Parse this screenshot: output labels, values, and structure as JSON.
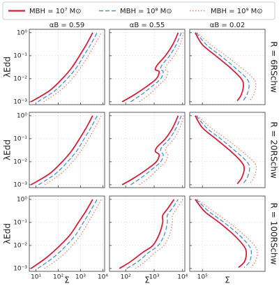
{
  "chart_data": {
    "type": "line",
    "log_x": true,
    "log_y": true,
    "grid": true,
    "xlabel": "Σ",
    "ylabel": "λEdd",
    "ylim": [
      0.00075,
      1.4
    ],
    "yticks": [
      {
        "value": 0.001,
        "label": "10⁻³"
      },
      {
        "value": 0.01,
        "label": "10⁻²"
      },
      {
        "value": 0.1,
        "label": "10⁻¹"
      },
      {
        "value": 1,
        "label": "10⁰"
      }
    ],
    "series": [
      {
        "name": "MBH = 10⁷ M⊙",
        "color": "#d41f3c",
        "dash": "solid"
      },
      {
        "name": "MBH = 10⁸ M⊙",
        "color": "#4a8fd8",
        "dash": "dashed"
      },
      {
        "name": "MBH = 10⁹ M⊙",
        "color": "#f0806a",
        "dash": "dotted"
      }
    ],
    "columns": [
      {
        "title": "αB = 0.59",
        "xlim": [
          5,
          12000
        ],
        "xticks": [
          {
            "value": 10,
            "label": "10¹"
          },
          {
            "value": 100,
            "label": "10²"
          },
          {
            "value": 1000,
            "label": "10³"
          },
          {
            "value": 10000,
            "label": "10⁴"
          }
        ]
      },
      {
        "title": "αB = 0.55",
        "xlim": [
          27,
          12000
        ],
        "xticks": [
          {
            "value": 100,
            "label": "10²"
          },
          {
            "value": 1000,
            "label": "10³"
          },
          {
            "value": 10000,
            "label": "10⁴"
          }
        ]
      },
      {
        "title": "αB = 0.02",
        "xlim": [
          35000,
          18000000
        ],
        "xticks": [
          {
            "value": 100000,
            "label": "10⁵"
          }
        ]
      }
    ],
    "rows": [
      {
        "label": "R = 6RSchw",
        "panels": [
          {
            "lines": [
              {
                "x": [
                  6,
                  40,
                  150,
                  400,
                  900,
                  1800,
                  3500
                ],
                "y": [
                  0.001,
                  0.003,
                  0.01,
                  0.03,
                  0.1,
                  0.3,
                  1
                ]
              },
              {
                "x": [
                  12,
                  70,
                  250,
                  650,
                  1400,
                  2800,
                  5500
                ],
                "y": [
                  0.001,
                  0.003,
                  0.01,
                  0.03,
                  0.1,
                  0.3,
                  1
                ]
              },
              {
                "x": [
                  22,
                  120,
                  420,
                  1000,
                  2200,
                  4300,
                  8500
                ],
                "y": [
                  0.001,
                  0.003,
                  0.01,
                  0.03,
                  0.1,
                  0.3,
                  1
                ]
              }
            ]
          },
          {
            "lines": [
              {
                "x": [
                  75,
                  200,
                  600,
                  1200,
                  1500,
                  1100,
                  1300,
                  2500,
                  4500,
                  7000
                ],
                "y": [
                  0.001,
                  0.002,
                  0.005,
                  0.01,
                  0.02,
                  0.025,
                  0.04,
                  0.1,
                  0.3,
                  1
                ]
              },
              {
                "x": [
                  150,
                  350,
                  900,
                  1700,
                  2100,
                  1700,
                  1900,
                  3500,
                  6000,
                  9000
                ],
                "y": [
                  0.001,
                  0.002,
                  0.005,
                  0.01,
                  0.02,
                  0.025,
                  0.04,
                  0.1,
                  0.3,
                  1
                ]
              },
              {
                "x": [
                  300,
                  650,
                  1400,
                  2500,
                  3000,
                  2500,
                  2800,
                  5000,
                  8000,
                  11000
                ],
                "y": [
                  0.001,
                  0.002,
                  0.005,
                  0.01,
                  0.02,
                  0.025,
                  0.04,
                  0.1,
                  0.3,
                  1
                ]
              }
            ]
          },
          {
            "lines": [
              {
                "x": [
                  55000,
                  100000,
                  300000,
                  1000000,
                  2500000,
                  3000000,
                  2500000,
                  1800000
                ],
                "y": [
                  1,
                  0.3,
                  0.1,
                  0.03,
                  0.01,
                  0.005,
                  0.002,
                  0.0011
                ]
              },
              {
                "x": [
                  60000,
                  140000,
                  450000,
                  1500000,
                  4000000,
                  4800000,
                  4000000,
                  2900000
                ],
                "y": [
                  1,
                  0.3,
                  0.1,
                  0.03,
                  0.01,
                  0.005,
                  0.002,
                  0.0011
                ]
              },
              {
                "x": [
                  65000,
                  200000,
                  700000,
                  2500000,
                  7000000,
                  8400000,
                  7000000,
                  5000000
                ],
                "y": [
                  1,
                  0.3,
                  0.1,
                  0.03,
                  0.01,
                  0.005,
                  0.002,
                  0.0011
                ]
              }
            ]
          }
        ]
      },
      {
        "label": "R = 20RSchw",
        "panels": [
          {
            "lines": [
              {
                "x": [
                  6,
                  40,
                  150,
                  400,
                  900,
                  1800,
                  3500
                ],
                "y": [
                  0.001,
                  0.003,
                  0.01,
                  0.03,
                  0.1,
                  0.3,
                  1
                ]
              },
              {
                "x": [
                  13,
                  75,
                  260,
                  680,
                  1450,
                  2900,
                  5600
                ],
                "y": [
                  0.001,
                  0.003,
                  0.01,
                  0.03,
                  0.1,
                  0.3,
                  1
                ]
              },
              {
                "x": [
                  25,
                  130,
                  440,
                  1050,
                  2300,
                  4400,
                  8500
                ],
                "y": [
                  0.001,
                  0.003,
                  0.01,
                  0.03,
                  0.1,
                  0.3,
                  1
                ]
              }
            ]
          },
          {
            "lines": [
              {
                "x": [
                  75,
                  200,
                  600,
                  1200,
                  1500,
                  1100,
                  1300,
                  2500,
                  4500,
                  7000
                ],
                "y": [
                  0.001,
                  0.002,
                  0.005,
                  0.01,
                  0.02,
                  0.028,
                  0.045,
                  0.1,
                  0.3,
                  1
                ]
              },
              {
                "x": [
                  150,
                  350,
                  900,
                  1700,
                  2100,
                  1700,
                  1900,
                  3500,
                  6000,
                  9000
                ],
                "y": [
                  0.001,
                  0.002,
                  0.005,
                  0.01,
                  0.02,
                  0.028,
                  0.045,
                  0.1,
                  0.3,
                  1
                ]
              },
              {
                "x": [
                  300,
                  650,
                  1400,
                  2500,
                  3000,
                  2500,
                  2800,
                  5000,
                  8000,
                  11000
                ],
                "y": [
                  0.001,
                  0.002,
                  0.005,
                  0.01,
                  0.02,
                  0.028,
                  0.045,
                  0.1,
                  0.3,
                  1
                ]
              }
            ]
          },
          {
            "lines": [
              {
                "x": [
                  55000,
                  100000,
                  300000,
                  1000000,
                  2500000,
                  3200000,
                  2600000,
                  1800000
                ],
                "y": [
                  1,
                  0.3,
                  0.1,
                  0.03,
                  0.01,
                  0.005,
                  0.002,
                  0.0011
                ]
              },
              {
                "x": [
                  60000,
                  140000,
                  450000,
                  1500000,
                  4000000,
                  5000000,
                  4100000,
                  2900000
                ],
                "y": [
                  1,
                  0.3,
                  0.1,
                  0.03,
                  0.01,
                  0.005,
                  0.002,
                  0.0011
                ]
              },
              {
                "x": [
                  65000,
                  200000,
                  700000,
                  2500000,
                  7000000,
                  8700000,
                  7000000,
                  5000000
                ],
                "y": [
                  1,
                  0.3,
                  0.1,
                  0.03,
                  0.01,
                  0.005,
                  0.002,
                  0.0011
                ]
              }
            ]
          }
        ]
      },
      {
        "label": "R = 100RSchw",
        "panels": [
          {
            "lines": [
              {
                "x": [
                  6,
                  30,
                  120,
                  350,
                  800,
                  1700,
                  3500
                ],
                "y": [
                  0.001,
                  0.003,
                  0.01,
                  0.03,
                  0.1,
                  0.3,
                  1
                ]
              },
              {
                "x": [
                  12,
                  60,
                  230,
                  620,
                  1350,
                  2700,
                  5500
                ],
                "y": [
                  0.001,
                  0.003,
                  0.01,
                  0.03,
                  0.1,
                  0.3,
                  1
                ]
              },
              {
                "x": [
                  24,
                  120,
                  420,
                  1050,
                  2200,
                  4300,
                  8500
                ],
                "y": [
                  0.001,
                  0.003,
                  0.01,
                  0.03,
                  0.1,
                  0.3,
                  1
                ]
              }
            ]
          },
          {
            "lines": [
              {
                "x": [
                  60,
                  150,
                  400,
                  900,
                  1500,
                  2000,
                  2000,
                  3000,
                  5000
                ],
                "y": [
                  0.001,
                  0.002,
                  0.005,
                  0.01,
                  0.03,
                  0.1,
                  0.2,
                  0.4,
                  1
                ]
              },
              {
                "x": [
                  110,
                  270,
                  650,
                  1400,
                  2300,
                  2900,
                  2900,
                  4300,
                  7000
                ],
                "y": [
                  0.001,
                  0.002,
                  0.005,
                  0.01,
                  0.03,
                  0.1,
                  0.2,
                  0.4,
                  1
                ]
              },
              {
                "x": [
                  220,
                  480,
                  1100,
                  2200,
                  3500,
                  4400,
                  4400,
                  6300,
                  10000
                ],
                "y": [
                  0.001,
                  0.002,
                  0.005,
                  0.01,
                  0.03,
                  0.1,
                  0.2,
                  0.4,
                  1
                ]
              }
            ]
          },
          {
            "lines": [
              {
                "x": [
                  55000,
                  120000,
                  400000,
                  1300000,
                  3000000,
                  3800000,
                  3300000,
                  2000000
                ],
                "y": [
                  1,
                  0.3,
                  0.1,
                  0.03,
                  0.01,
                  0.005,
                  0.002,
                  0.0011
                ]
              },
              {
                "x": [
                  60000,
                  170000,
                  600000,
                  2000000,
                  4700000,
                  5800000,
                  5000000,
                  3200000
                ],
                "y": [
                  1,
                  0.3,
                  0.1,
                  0.03,
                  0.01,
                  0.005,
                  0.002,
                  0.0011
                ]
              },
              {
                "x": [
                  65000,
                  250000,
                  900000,
                  3000000,
                  7500000,
                  9500000,
                  8000000,
                  5500000
                ],
                "y": [
                  1,
                  0.3,
                  0.1,
                  0.03,
                  0.01,
                  0.005,
                  0.002,
                  0.0011
                ]
              }
            ]
          }
        ]
      }
    ]
  }
}
